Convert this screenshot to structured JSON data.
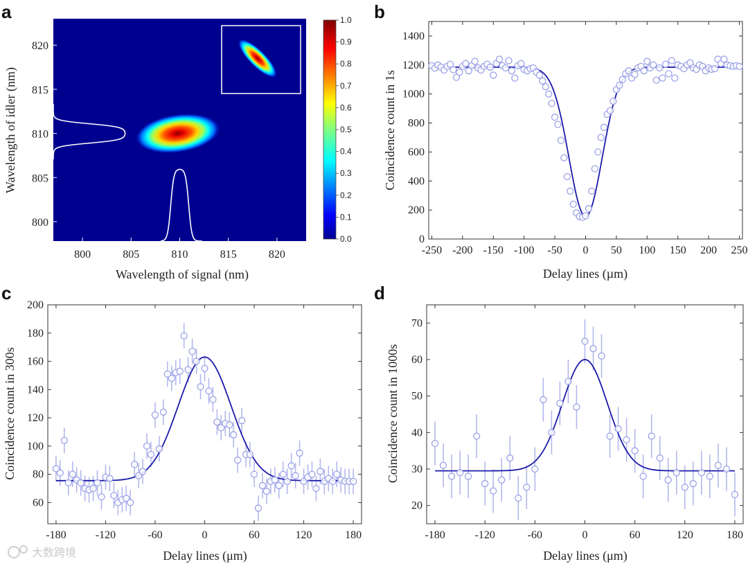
{
  "watermark": "大数跨境",
  "chart_data": [
    {
      "panel": "a",
      "type": "heatmap",
      "xlabel": "Wavelength of signal (nm)",
      "ylabel": "Wavelength of idler (nm)",
      "xticks": [
        800,
        805,
        810,
        815,
        820
      ],
      "yticks": [
        800,
        805,
        810,
        815,
        820
      ],
      "xlim": [
        797,
        823
      ],
      "ylim": [
        797.8,
        823
      ],
      "colorbar": {
        "min": 0,
        "max": 1,
        "ticks": [
          "0.0",
          "0.1",
          "0.2",
          "0.3",
          "0.4",
          "0.5",
          "0.6",
          "0.7",
          "0.8",
          "0.9",
          "1.0"
        ]
      },
      "main_peak": {
        "x": 809.8,
        "y": 810.0
      },
      "inset_peak": {
        "x": 818,
        "y": 818.5
      },
      "signal_spectrum_center": 810,
      "idler_spectrum_center": 810
    },
    {
      "panel": "b",
      "type": "scatter",
      "xlabel": "Delay lines (µm)",
      "ylabel": "Coincidence count in 1s",
      "xticks": [
        -250,
        -200,
        -150,
        -100,
        -50,
        0,
        50,
        100,
        150,
        200,
        250
      ],
      "yticks": [
        0,
        200,
        400,
        600,
        800,
        1000,
        1200,
        1400
      ],
      "xlim": [
        -255,
        255
      ],
      "ylim": [
        0,
        1500
      ],
      "fit": {
        "baseline": 1185,
        "depth": 1030,
        "center": 0,
        "sigma": 27,
        "power": 2
      },
      "x": [
        -250,
        -245,
        -240,
        -235,
        -230,
        -225,
        -220,
        -215,
        -210,
        -205,
        -200,
        -195,
        -190,
        -185,
        -180,
        -175,
        -170,
        -165,
        -160,
        -155,
        -150,
        -145,
        -140,
        -135,
        -130,
        -125,
        -120,
        -115,
        -110,
        -105,
        -100,
        -95,
        -90,
        -85,
        -80,
        -75,
        -70,
        -65,
        -60,
        -55,
        -50,
        -45,
        -40,
        -35,
        -30,
        -25,
        -20,
        -15,
        -10,
        -5,
        0,
        5,
        10,
        15,
        20,
        25,
        30,
        35,
        40,
        45,
        50,
        55,
        60,
        65,
        70,
        75,
        80,
        85,
        90,
        95,
        100,
        105,
        110,
        115,
        120,
        125,
        130,
        135,
        140,
        145,
        150,
        155,
        160,
        165,
        170,
        175,
        180,
        185,
        190,
        195,
        200,
        205,
        210,
        215,
        220,
        225,
        230,
        235,
        240,
        245,
        250
      ],
      "y": [
        1195,
        1178,
        1200,
        1185,
        1165,
        1190,
        1205,
        1168,
        1115,
        1150,
        1190,
        1210,
        1160,
        1195,
        1225,
        1180,
        1165,
        1190,
        1205,
        1185,
        1130,
        1210,
        1240,
        1195,
        1180,
        1230,
        1160,
        1110,
        1195,
        1210,
        1170,
        1160,
        1175,
        1180,
        1150,
        1130,
        1090,
        1050,
        1000,
        935,
        840,
        790,
        680,
        560,
        430,
        330,
        240,
        180,
        155,
        150,
        160,
        210,
        330,
        485,
        600,
        700,
        770,
        860,
        885,
        950,
        1030,
        1060,
        1100,
        1140,
        1160,
        1110,
        1135,
        1180,
        1190,
        1160,
        1225,
        1180,
        1200,
        1095,
        1180,
        1110,
        1205,
        1140,
        1230,
        1110,
        1200,
        1190,
        1175,
        1200,
        1215,
        1180,
        1170,
        1200,
        1190,
        1160,
        1180,
        1170,
        1175,
        1240,
        1210,
        1240,
        1200,
        1195,
        1190,
        1195,
        1190
      ]
    },
    {
      "panel": "c",
      "type": "scatter",
      "xlabel": "Delay lines (μm)",
      "ylabel": "Coincidence count in 300s",
      "xticks": [
        -180,
        -120,
        -60,
        0,
        60,
        120,
        180
      ],
      "yticks": [
        60,
        80,
        100,
        120,
        140,
        160,
        180,
        200
      ],
      "xlim": [
        -190,
        190
      ],
      "ylim": [
        45,
        200
      ],
      "fit": {
        "baseline": 75.5,
        "amplitude": 87.5,
        "center": 0,
        "sigma": 32
      },
      "x": [
        -180,
        -175,
        -170,
        -165,
        -160,
        -155,
        -150,
        -145,
        -140,
        -135,
        -130,
        -125,
        -120,
        -115,
        -110,
        -105,
        -100,
        -95,
        -90,
        -85,
        -80,
        -75,
        -70,
        -65,
        -60,
        -55,
        -50,
        -45,
        -40,
        -35,
        -30,
        -25,
        -20,
        -15,
        -10,
        -5,
        0,
        5,
        10,
        15,
        20,
        25,
        30,
        35,
        40,
        45,
        50,
        55,
        60,
        65,
        70,
        75,
        80,
        85,
        90,
        95,
        100,
        105,
        110,
        115,
        120,
        125,
        130,
        135,
        140,
        145,
        150,
        155,
        160,
        165,
        170,
        175,
        180
      ],
      "y": [
        84,
        81,
        104,
        74,
        80,
        76,
        74,
        70,
        69,
        70,
        74,
        64,
        78,
        77,
        65,
        60,
        62,
        63,
        60,
        87,
        79,
        82,
        100,
        94,
        122,
        98,
        124,
        151,
        148,
        152,
        153,
        178,
        154,
        167,
        160,
        142,
        155,
        139,
        133,
        117,
        113,
        116,
        115,
        108,
        90,
        118,
        94,
        94,
        80,
        56,
        72,
        68,
        75,
        76,
        72,
        80,
        75,
        86,
        79,
        95,
        75,
        78,
        80,
        70,
        82,
        75,
        77,
        75,
        80,
        76,
        75,
        75,
        75
      ],
      "err": 9
    },
    {
      "panel": "d",
      "type": "scatter",
      "xlabel": "Delay lines (μm)",
      "ylabel": "Coincidence count in 1000s",
      "xticks": [
        -180,
        -120,
        -60,
        0,
        60,
        120,
        180
      ],
      "yticks": [
        20,
        30,
        40,
        50,
        60,
        70
      ],
      "xlim": [
        -190,
        190
      ],
      "ylim": [
        15,
        75
      ],
      "fit": {
        "baseline": 29.5,
        "amplitude": 30.5,
        "center": 0,
        "sigma": 27
      },
      "x": [
        -180,
        -170,
        -160,
        -150,
        -140,
        -130,
        -120,
        -110,
        -100,
        -90,
        -80,
        -70,
        -60,
        -50,
        -40,
        -30,
        -20,
        -10,
        0,
        10,
        20,
        30,
        40,
        50,
        60,
        70,
        80,
        90,
        100,
        110,
        120,
        130,
        140,
        150,
        160,
        170,
        180
      ],
      "y": [
        37,
        31,
        28,
        29,
        28,
        39,
        26,
        24,
        27,
        33,
        22,
        25,
        30,
        49,
        40,
        48,
        54,
        47,
        65,
        63,
        61,
        39,
        41,
        38,
        35,
        28,
        39,
        33,
        27,
        29,
        25,
        26,
        29,
        28,
        31,
        30,
        23
      ],
      "err": 6
    }
  ]
}
